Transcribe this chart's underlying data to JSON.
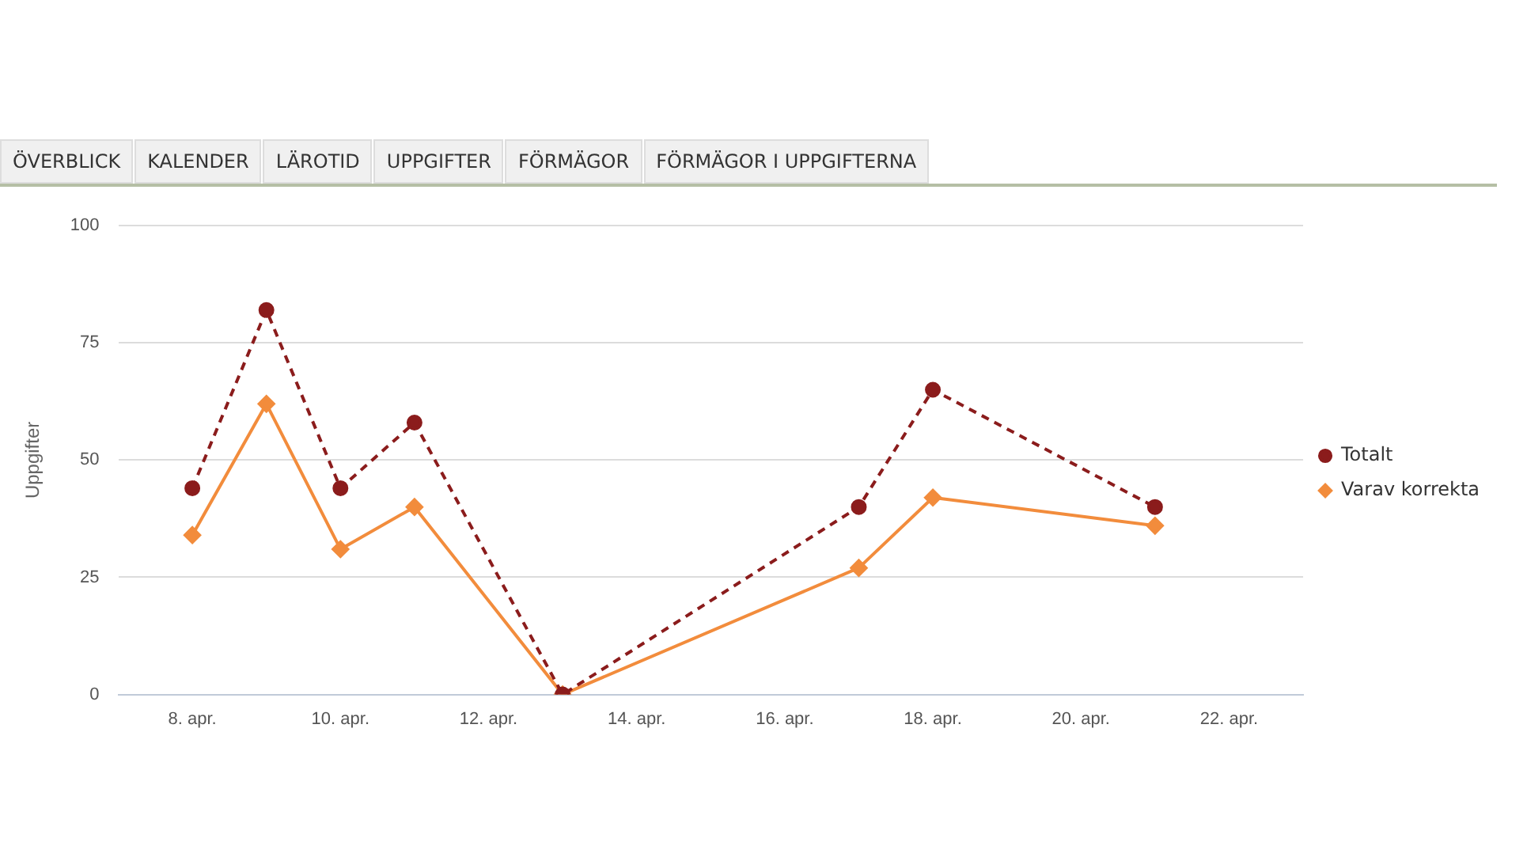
{
  "chart_data": {
    "type": "line",
    "ylabel": "Uppgifter",
    "annotations": [
      "ÖVERBLICK",
      "KALENDER",
      "LÄROTID",
      "UPPGIFTER",
      "FÖRMÄGOR",
      "FÖRMÄGOR I UPPGIFTERNA"
    ],
    "x": [
      "--04-08",
      "--04-09",
      "--04-10",
      "--04-11",
      "--04-13",
      "--04-17",
      "--04-18",
      "--04-21"
    ],
    "series": [
      {
        "name": "Totalt",
        "color": "#8b1c1c",
        "marker": "circle",
        "line_style": "dashed",
        "values": [
          44,
          82,
          44,
          58,
          0,
          40,
          65,
          40
        ]
      },
      {
        "name": "Varav korrekta",
        "color": "#f28c3c",
        "marker": "diamond",
        "line_style": "solid",
        "values": [
          34,
          62,
          31,
          40,
          0,
          27,
          42,
          36
        ]
      }
    ],
    "xlim": [
      "--04-07",
      "--04-23"
    ],
    "xticks": [
      {
        "value": "--04-08",
        "label": "8. apr."
      },
      {
        "value": "--04-10",
        "label": "10. apr."
      },
      {
        "value": "--04-12",
        "label": "12. apr."
      },
      {
        "value": "--04-14",
        "label": "14. apr."
      },
      {
        "value": "--04-16",
        "label": "16. apr."
      },
      {
        "value": "--04-18",
        "label": "18. apr."
      },
      {
        "value": "--04-20",
        "label": "20. apr."
      },
      {
        "value": "--04-22",
        "label": "22. apr."
      }
    ],
    "ylim": [
      0,
      100
    ],
    "yticks": [
      0,
      25,
      50,
      75,
      100
    ],
    "grid": "y",
    "legend": "right"
  }
}
